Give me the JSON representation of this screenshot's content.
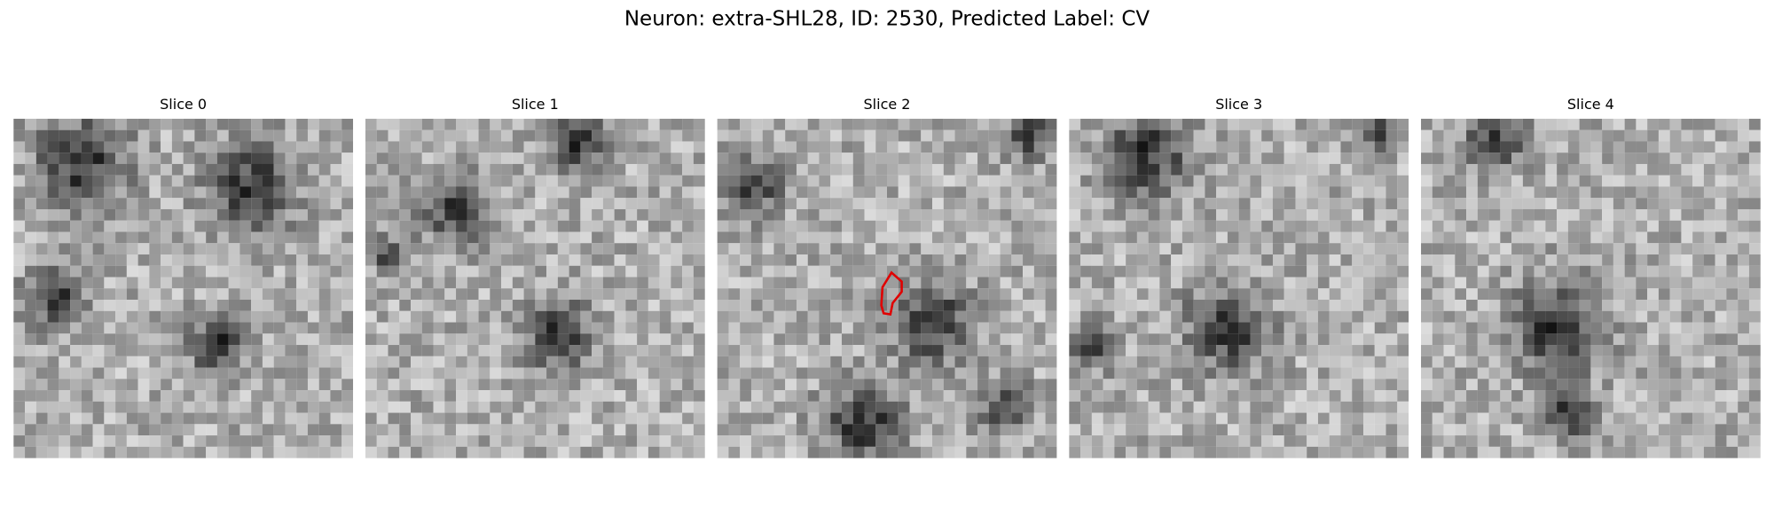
{
  "title": "Neuron: extra-SHL28, ID: 2530, Predicted Label: CV",
  "panels": [
    {
      "title": "Slice 0"
    },
    {
      "title": "Slice 1"
    },
    {
      "title": "Slice 2"
    },
    {
      "title": "Slice 3"
    },
    {
      "title": "Slice 4"
    }
  ]
}
